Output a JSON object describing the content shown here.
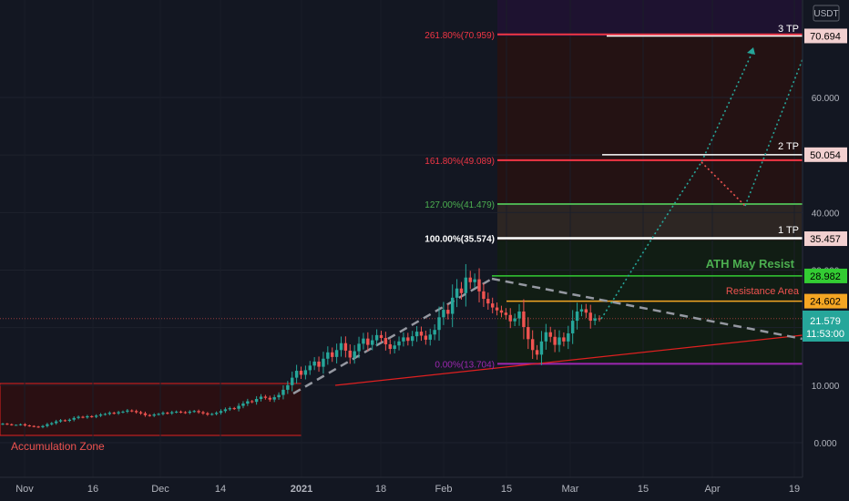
{
  "currency": "USDT",
  "price_labels": [
    {
      "text": "70.694",
      "value": 70.694,
      "bg": "#f2d0d0",
      "fg": "#000000"
    },
    {
      "text": "50.054",
      "value": 50.054,
      "bg": "#f2d0d0",
      "fg": "#000000"
    },
    {
      "text": "35.457",
      "value": 35.457,
      "bg": "#f2d0d0",
      "fg": "#000000"
    },
    {
      "text": "28.982",
      "value": 28.982,
      "bg": "#33cc33",
      "fg": "#000000"
    },
    {
      "text": "24.602",
      "value": 24.602,
      "bg": "#f5a623",
      "fg": "#000000"
    }
  ],
  "current_price": {
    "price": "21.579",
    "countdown": "11:53:00",
    "value": 21.579,
    "color": "#26a69a"
  },
  "annotations": {
    "tp3": "3 TP",
    "tp2": "2 TP",
    "tp1": "1 TP",
    "ath": "ATH May Resist",
    "resistance": "Resistance Area",
    "accumulation": "Accumulation Zone"
  },
  "fib_levels": [
    {
      "label": "261.80%(70.959)",
      "value": 70.959,
      "color": "#f23645"
    },
    {
      "label": "161.80%(49.089)",
      "value": 49.089,
      "color": "#f23645"
    },
    {
      "label": "127.00%(41.479)",
      "value": 41.479,
      "color": "#4caf50"
    },
    {
      "label": "100.00%(35.574)",
      "value": 35.574,
      "color": "#ffffff"
    },
    {
      "label": "0.00%(13.704)",
      "value": 13.704,
      "color": "#9c27b0"
    }
  ],
  "colors": {
    "up": "#26a69a",
    "down": "#ef5350",
    "background": "#131722"
  },
  "chart_data": {
    "type": "candlestick",
    "x_ticks": [
      "Nov",
      "16",
      "Dec",
      "14",
      "2021",
      "18",
      "Feb",
      "15",
      "Mar",
      "15",
      "Apr",
      "19"
    ],
    "y_ticks": [
      "0.000",
      "10.000",
      "20.000",
      "30.000",
      "40.000",
      "50.000",
      "60.000"
    ],
    "y_tick_values": [
      0,
      10,
      20,
      30,
      40,
      50,
      60
    ],
    "y_range": [
      -2,
      74
    ],
    "series_close": [
      3.3,
      3.2,
      3.1,
      3.1,
      3.2,
      3.0,
      2.9,
      2.8,
      2.7,
      2.9,
      3.2,
      3.4,
      3.7,
      3.9,
      3.8,
      4.0,
      4.3,
      4.5,
      4.4,
      4.6,
      4.5,
      4.7,
      4.9,
      5.0,
      5.2,
      5.1,
      5.3,
      5.4,
      5.6,
      5.5,
      5.3,
      5.1,
      4.8,
      4.7,
      4.9,
      5.0,
      5.2,
      5.1,
      5.3,
      5.4,
      5.3,
      5.2,
      5.4,
      5.5,
      5.3,
      5.1,
      4.9,
      5.0,
      5.2,
      5.5,
      5.8,
      6.0,
      5.9,
      6.4,
      6.8,
      7.2,
      7.1,
      7.6,
      8.0,
      7.8,
      7.5,
      7.9,
      8.3,
      9.2,
      10.0,
      11.3,
      12.5,
      11.8,
      12.6,
      13.4,
      14.1,
      13.2,
      14.6,
      15.7,
      14.9,
      16.1,
      17.3,
      16.0,
      14.8,
      15.9,
      17.2,
      18.1,
      17.0,
      17.8,
      18.7,
      18.2,
      17.1,
      16.3,
      16.9,
      17.6,
      18.3,
      17.7,
      18.5,
      19.3,
      18.6,
      17.9,
      18.8,
      19.6,
      21.8,
      23.1,
      22.4,
      25.2,
      26.8,
      26.0,
      28.7,
      27.9,
      28.4,
      26.3,
      25.0,
      24.2,
      23.5,
      23.0,
      22.6,
      22.2,
      21.1,
      21.6,
      22.8,
      20.1,
      18.0,
      16.1,
      15.3,
      17.6,
      19.2,
      18.4,
      17.0,
      18.3,
      17.6,
      19.0,
      21.2,
      22.8,
      23.2,
      22.6,
      21.2,
      21.6,
      21.579
    ],
    "drawn_levels": {
      "ath": 28.982,
      "resistance": 24.602,
      "tp1": 35.457,
      "tp2": 50.054,
      "tp3": 70.694
    }
  }
}
